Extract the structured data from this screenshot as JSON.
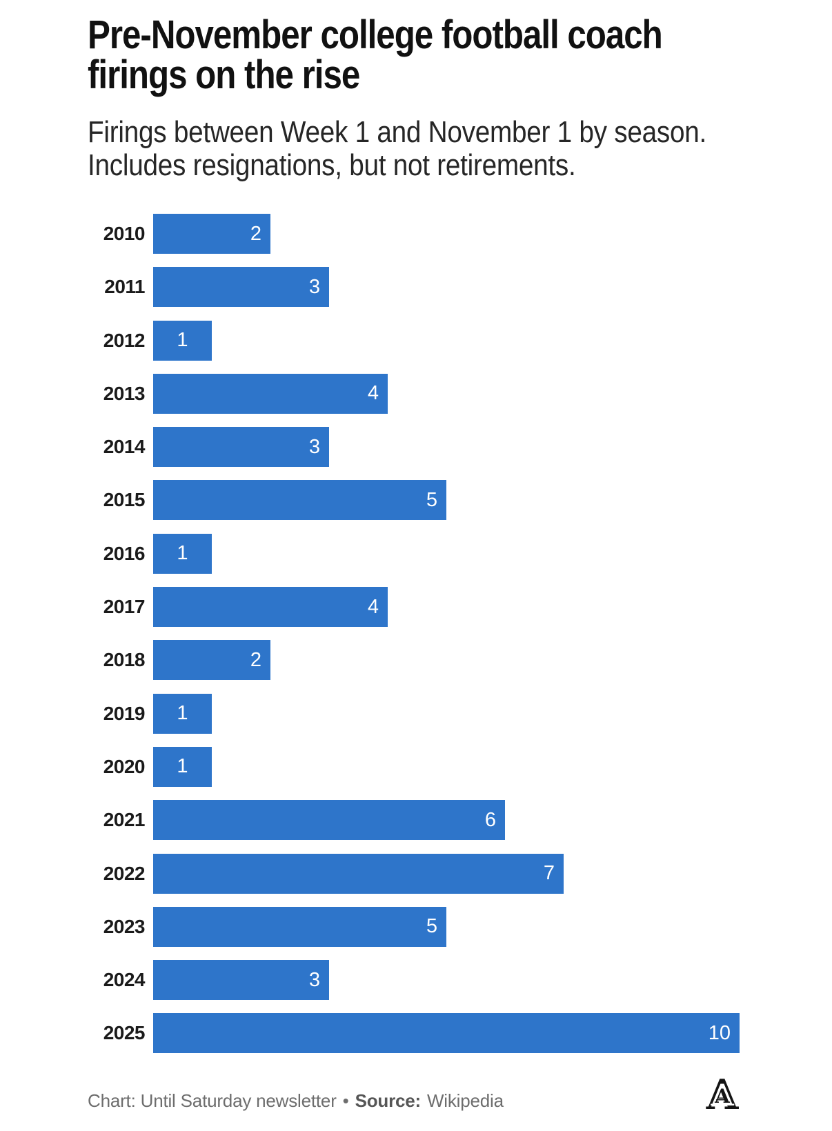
{
  "header": {
    "title": "Pre-November college football coach\nfirings on the rise",
    "subtitle": "Firings between Week 1 and November 1 by season.\nIncludes resignations, but not retirements."
  },
  "chart_data": {
    "type": "bar",
    "orientation": "horizontal",
    "title": "Pre-November college football coach firings on the rise",
    "subtitle": "Firings between Week 1 and November 1 by season. Includes resignations, but not retirements.",
    "categories": [
      "2010",
      "2011",
      "2012",
      "2013",
      "2014",
      "2015",
      "2016",
      "2017",
      "2018",
      "2019",
      "2020",
      "2021",
      "2022",
      "2023",
      "2024",
      "2025"
    ],
    "values": [
      2,
      3,
      1,
      4,
      3,
      5,
      1,
      4,
      2,
      1,
      1,
      6,
      7,
      5,
      3,
      10
    ],
    "xlabel": "",
    "ylabel": "",
    "xlim": [
      0,
      10
    ],
    "grid": false,
    "legend": false,
    "bar_color": "#2e75ca",
    "value_label_color": "#ffffff",
    "value_labels_inside_bar": true
  },
  "footer": {
    "credit": "Chart: Until Saturday newsletter",
    "separator": "•",
    "source_label": "Source:",
    "source_value": "Wikipedia",
    "logo_name": "the-athletic-a-logo",
    "logo_letter": "A"
  }
}
